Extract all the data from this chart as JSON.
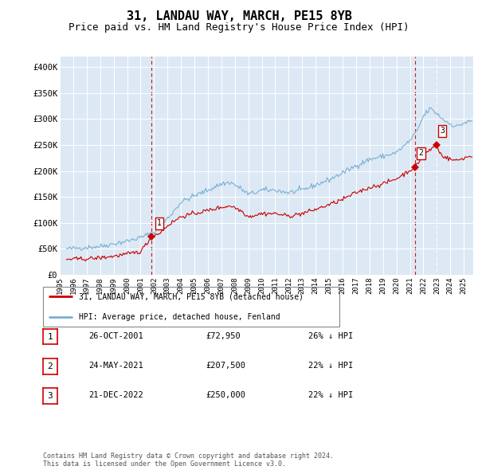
{
  "title": "31, LANDAU WAY, MARCH, PE15 8YB",
  "subtitle": "Price paid vs. HM Land Registry's House Price Index (HPI)",
  "title_fontsize": 11,
  "subtitle_fontsize": 9,
  "background_color": "#ffffff",
  "chart_bg_color": "#dce9f5",
  "grid_color": "#ffffff",
  "hpi_color": "#7ab0d4",
  "sold_color": "#cc0000",
  "dashed_line_color": "#cc0000",
  "ylim": [
    0,
    420000
  ],
  "yticks": [
    0,
    50000,
    100000,
    150000,
    200000,
    250000,
    300000,
    350000,
    400000
  ],
  "ytick_labels": [
    "£0",
    "£50K",
    "£100K",
    "£150K",
    "£200K",
    "£250K",
    "£300K",
    "£350K",
    "£400K"
  ],
  "sales": [
    {
      "date_num": 2001.82,
      "price": 72950,
      "label": "1"
    },
    {
      "date_num": 2021.39,
      "price": 207500,
      "label": "2"
    },
    {
      "date_num": 2022.97,
      "price": 250000,
      "label": "3"
    }
  ],
  "legend_entries": [
    {
      "label": "31, LANDAU WAY, MARCH, PE15 8YB (detached house)",
      "color": "#cc0000"
    },
    {
      "label": "HPI: Average price, detached house, Fenland",
      "color": "#7ab0d4"
    }
  ],
  "table_rows": [
    {
      "num": "1",
      "date": "26-OCT-2001",
      "price": "£72,950",
      "hpi": "26% ↓ HPI"
    },
    {
      "num": "2",
      "date": "24-MAY-2021",
      "price": "£207,500",
      "hpi": "22% ↓ HPI"
    },
    {
      "num": "3",
      "date": "21-DEC-2022",
      "price": "£250,000",
      "hpi": "22% ↓ HPI"
    }
  ],
  "footnote": "Contains HM Land Registry data © Crown copyright and database right 2024.\nThis data is licensed under the Open Government Licence v3.0.",
  "xmin": 1995.5,
  "xmax": 2025.7,
  "xtick_years": [
    1995,
    1996,
    1997,
    1998,
    1999,
    2000,
    2001,
    2002,
    2003,
    2004,
    2005,
    2006,
    2007,
    2008,
    2009,
    2010,
    2011,
    2012,
    2013,
    2014,
    2015,
    2016,
    2017,
    2018,
    2019,
    2020,
    2021,
    2022,
    2023,
    2024,
    2025
  ]
}
